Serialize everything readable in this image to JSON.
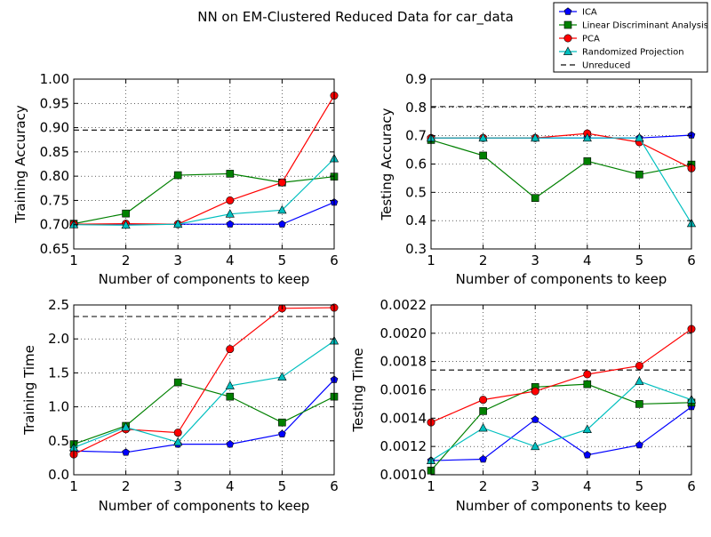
{
  "figure": {
    "title": "NN on EM-Clustered Reduced Data for car_data"
  },
  "legend": {
    "placement": "top-right",
    "entries": [
      {
        "label": "ICA",
        "color": "#0000ff",
        "marker": "pentagon",
        "linestyle": "solid"
      },
      {
        "label": "Linear Discriminant Analysis",
        "color": "#008000",
        "marker": "square",
        "linestyle": "solid"
      },
      {
        "label": "PCA",
        "color": "#ff0000",
        "marker": "circle",
        "linestyle": "solid"
      },
      {
        "label": "Randomized Projection",
        "color": "#00bfbf",
        "marker": "triangle",
        "linestyle": "solid"
      },
      {
        "label": "Unreduced",
        "color": "#000000",
        "marker": "none",
        "linestyle": "dashed"
      }
    ]
  },
  "chart_data": [
    {
      "type": "line",
      "xlabel": "Number of components to keep",
      "ylabel": "Training Accuracy",
      "x": [
        1,
        2,
        3,
        4,
        5,
        6
      ],
      "xlim": [
        1,
        6
      ],
      "ylim": [
        0.65,
        1.0
      ],
      "xticks": [
        "1",
        "2",
        "3",
        "4",
        "5",
        "6"
      ],
      "yticks": [
        "0.65",
        "0.70",
        "0.75",
        "0.80",
        "0.85",
        "0.90",
        "0.95",
        "1.00"
      ],
      "grid": true,
      "series": [
        {
          "name": "ICA",
          "values": [
            0.701,
            0.701,
            0.701,
            0.701,
            0.701,
            0.746
          ]
        },
        {
          "name": "Linear Discriminant Analysis",
          "values": [
            0.702,
            0.723,
            0.802,
            0.805,
            0.787,
            0.799
          ]
        },
        {
          "name": "PCA",
          "values": [
            0.701,
            0.702,
            0.701,
            0.75,
            0.787,
            0.966
          ]
        },
        {
          "name": "Randomized Projection",
          "values": [
            0.7,
            0.699,
            0.701,
            0.722,
            0.73,
            0.836
          ]
        }
      ],
      "reference": {
        "name": "Unreduced",
        "value": 0.895
      }
    },
    {
      "type": "line",
      "xlabel": "Number of components to keep",
      "ylabel": "Testing Accuracy",
      "x": [
        1,
        2,
        3,
        4,
        5,
        6
      ],
      "xlim": [
        1,
        6
      ],
      "ylim": [
        0.3,
        0.9
      ],
      "xticks": [
        "1",
        "2",
        "3",
        "4",
        "5",
        "6"
      ],
      "yticks": [
        "0.3",
        "0.4",
        "0.5",
        "0.6",
        "0.7",
        "0.8",
        "0.9"
      ],
      "grid": true,
      "series": [
        {
          "name": "ICA",
          "values": [
            0.692,
            0.692,
            0.692,
            0.692,
            0.692,
            0.702
          ]
        },
        {
          "name": "Linear Discriminant Analysis",
          "values": [
            0.685,
            0.63,
            0.48,
            0.61,
            0.563,
            0.598
          ]
        },
        {
          "name": "PCA",
          "values": [
            0.692,
            0.692,
            0.692,
            0.708,
            0.677,
            0.585
          ]
        },
        {
          "name": "Randomized Projection",
          "values": [
            0.692,
            0.692,
            0.692,
            0.692,
            0.692,
            0.39
          ]
        }
      ],
      "reference": {
        "name": "Unreduced",
        "value": 0.803
      }
    },
    {
      "type": "line",
      "xlabel": "Number of components to keep",
      "ylabel": "Training Time",
      "x": [
        1,
        2,
        3,
        4,
        5,
        6
      ],
      "xlim": [
        1,
        6
      ],
      "ylim": [
        0.0,
        2.5
      ],
      "xticks": [
        "1",
        "2",
        "3",
        "4",
        "5",
        "6"
      ],
      "yticks": [
        "0.0",
        "0.5",
        "1.0",
        "1.5",
        "2.0",
        "2.5"
      ],
      "grid": true,
      "series": [
        {
          "name": "ICA",
          "values": [
            0.35,
            0.33,
            0.45,
            0.45,
            0.6,
            1.4
          ]
        },
        {
          "name": "Linear Discriminant Analysis",
          "values": [
            0.45,
            0.72,
            1.36,
            1.15,
            0.77,
            1.15
          ]
        },
        {
          "name": "PCA",
          "values": [
            0.3,
            0.67,
            0.62,
            1.85,
            2.45,
            2.46
          ]
        },
        {
          "name": "Randomized Projection",
          "values": [
            0.4,
            0.7,
            0.48,
            1.31,
            1.44,
            1.97
          ]
        }
      ],
      "reference": {
        "name": "Unreduced",
        "value": 2.33
      }
    },
    {
      "type": "line",
      "xlabel": "Number of components to keep",
      "ylabel": "Testing Time",
      "x": [
        1,
        2,
        3,
        4,
        5,
        6
      ],
      "xlim": [
        1,
        6
      ],
      "ylim": [
        0.001,
        0.0022
      ],
      "xticks": [
        "1",
        "2",
        "3",
        "4",
        "5",
        "6"
      ],
      "yticks": [
        "0.0010",
        "0.0012",
        "0.0014",
        "0.0016",
        "0.0018",
        "0.0020",
        "0.0022"
      ],
      "grid": true,
      "series": [
        {
          "name": "ICA",
          "values": [
            0.0011,
            0.00111,
            0.00139,
            0.00114,
            0.00121,
            0.00148
          ]
        },
        {
          "name": "Linear Discriminant Analysis",
          "values": [
            0.00103,
            0.00145,
            0.00162,
            0.00164,
            0.0015,
            0.00151
          ]
        },
        {
          "name": "PCA",
          "values": [
            0.00137,
            0.00153,
            0.00159,
            0.00171,
            0.00177,
            0.00203
          ]
        },
        {
          "name": "Randomized Projection",
          "values": [
            0.0011,
            0.00133,
            0.0012,
            0.00132,
            0.00166,
            0.00153
          ]
        }
      ],
      "reference": {
        "name": "Unreduced",
        "value": 0.00174
      }
    }
  ]
}
